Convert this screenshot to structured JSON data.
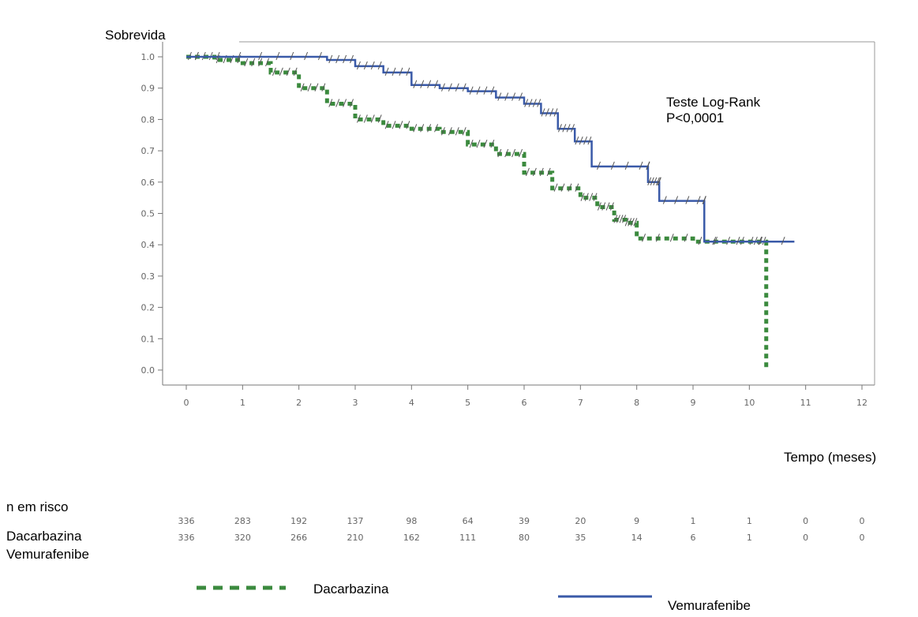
{
  "chart_data": {
    "type": "line",
    "title": "",
    "ylabel": "Sobrevida",
    "xlabel": "Tempo (meses)",
    "xlim": [
      0,
      12
    ],
    "ylim": [
      0.0,
      1.0
    ],
    "x_ticks": [
      "0",
      "1",
      "2",
      "3",
      "4",
      "5",
      "6",
      "7",
      "8",
      "9",
      "10",
      "11",
      "12"
    ],
    "y_ticks": [
      "0.0",
      "0.1",
      "0.2",
      "0.3",
      "0.4",
      "0.5",
      "0.6",
      "0.7",
      "0.8",
      "0.9",
      "1.0"
    ],
    "annotation": [
      "Teste Log-Rank",
      "P<0,0001"
    ],
    "series": [
      {
        "name": "Dacarbazina",
        "color": "#3b8a3e",
        "style": "dashed",
        "points": [
          [
            0,
            1.0
          ],
          [
            0.5,
            0.99
          ],
          [
            1,
            0.98
          ],
          [
            1.5,
            0.95
          ],
          [
            2,
            0.9
          ],
          [
            2.5,
            0.85
          ],
          [
            3,
            0.8
          ],
          [
            3.5,
            0.78
          ],
          [
            4,
            0.77
          ],
          [
            4.5,
            0.76
          ],
          [
            5,
            0.72
          ],
          [
            5.5,
            0.69
          ],
          [
            6,
            0.63
          ],
          [
            6.5,
            0.58
          ],
          [
            7,
            0.55
          ],
          [
            7.3,
            0.52
          ],
          [
            7.6,
            0.48
          ],
          [
            7.8,
            0.47
          ],
          [
            8,
            0.42
          ],
          [
            9,
            0.41
          ],
          [
            10,
            0.41
          ],
          [
            10.3,
            0.41
          ],
          [
            10.3,
            0.0
          ]
        ]
      },
      {
        "name": "Vemurafenibe",
        "color": "#3a5aa8",
        "style": "solid",
        "points": [
          [
            0,
            1.0
          ],
          [
            1.5,
            1.0
          ],
          [
            2.5,
            0.99
          ],
          [
            3,
            0.97
          ],
          [
            3.5,
            0.95
          ],
          [
            4,
            0.91
          ],
          [
            4.5,
            0.9
          ],
          [
            5,
            0.89
          ],
          [
            5.5,
            0.87
          ],
          [
            6,
            0.85
          ],
          [
            6.3,
            0.82
          ],
          [
            6.6,
            0.77
          ],
          [
            6.9,
            0.73
          ],
          [
            7.2,
            0.65
          ],
          [
            8.2,
            0.65
          ],
          [
            8.2,
            0.6
          ],
          [
            8.4,
            0.6
          ],
          [
            8.4,
            0.54
          ],
          [
            9.2,
            0.54
          ],
          [
            9.2,
            0.41
          ],
          [
            10.8,
            0.41
          ]
        ]
      }
    ],
    "at_risk": {
      "title": "n em risco",
      "times": [
        "0",
        "1",
        "2",
        "3",
        "4",
        "5",
        "6",
        "7",
        "8",
        "9",
        "10",
        "11",
        "12"
      ],
      "rows": [
        {
          "name": "Dacarbazina",
          "values": [
            "336",
            "283",
            "192",
            "137",
            "98",
            "64",
            "39",
            "20",
            "9",
            "1",
            "1",
            "0",
            "0"
          ]
        },
        {
          "name": "Vemurafenibe",
          "values": [
            "336",
            "320",
            "266",
            "210",
            "162",
            "111",
            "80",
            "35",
            "14",
            "6",
            "1",
            "0",
            "0"
          ]
        }
      ]
    },
    "legend": [
      "Dacarbazina",
      "Vemurafenibe"
    ]
  }
}
